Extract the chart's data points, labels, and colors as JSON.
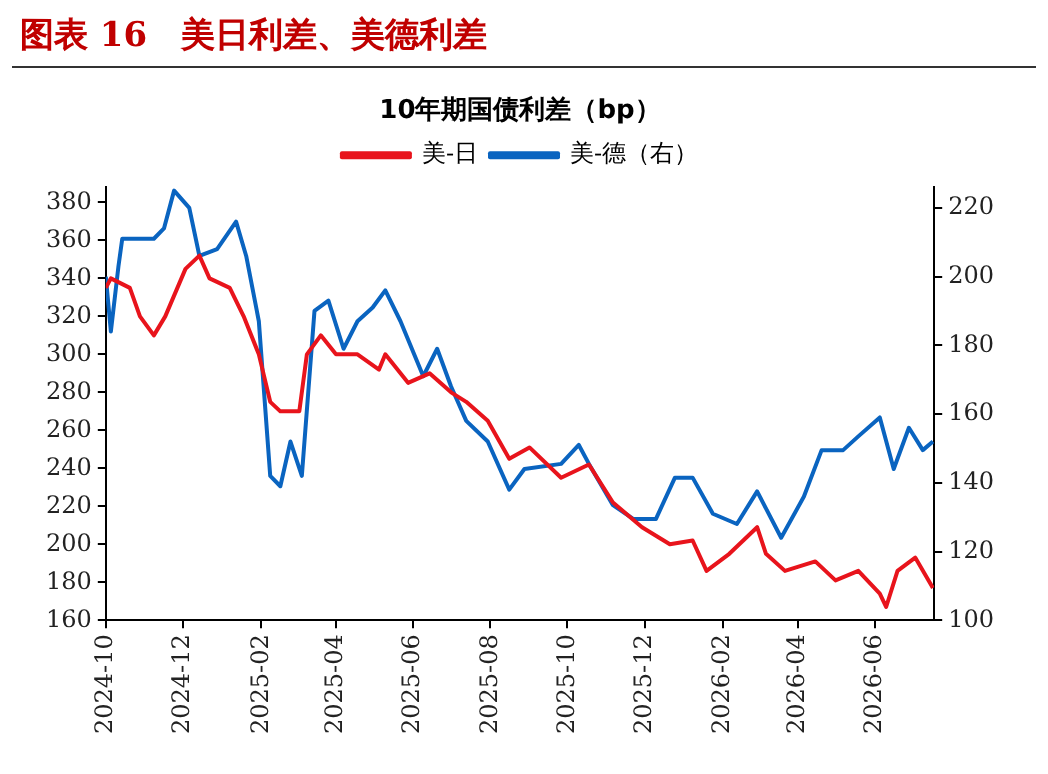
{
  "chart_data": {
    "type": "line",
    "title": "图表 16　美日利差、美德利差",
    "subtitle": "10年期国债利差（bp）",
    "xlim": [
      "2024-10-01",
      "2026-07-18"
    ],
    "xticks": [
      "2024-10",
      "2024-12",
      "2025-02",
      "2025-04",
      "2025-06",
      "2025-08",
      "2025-10",
      "2025-12",
      "2026-02",
      "2026-04",
      "2026-06"
    ],
    "ylim": [
      160,
      388
    ],
    "yticks": [
      160,
      180,
      200,
      220,
      240,
      260,
      280,
      300,
      320,
      340,
      360,
      380
    ],
    "y2lim": [
      100,
      226
    ],
    "y2ticks": [
      100,
      120,
      140,
      160,
      180,
      200,
      220
    ],
    "legend": "top",
    "grid": false,
    "marker": "none",
    "line_style": "solid",
    "series": [
      {
        "name": "美-日",
        "color": "#e8141c",
        "x": [
          "2024-10-01",
          "2024-10-05",
          "2024-10-20",
          "2024-10-28",
          "2024-11-08",
          "2024-11-17",
          "2024-12-03",
          "2024-12-14",
          "2024-12-22",
          "2025-01-07",
          "2025-01-18",
          "2025-01-30",
          "2025-02-08",
          "2025-02-16",
          "2025-03-03",
          "2025-03-09",
          "2025-03-20",
          "2025-04-01",
          "2025-04-18",
          "2025-05-05",
          "2025-05-10",
          "2025-05-28",
          "2025-06-14",
          "2025-07-01",
          "2025-07-13",
          "2025-07-30",
          "2025-08-16",
          "2025-09-01",
          "2025-09-26",
          "2025-10-18",
          "2025-11-06",
          "2025-11-29",
          "2025-12-21",
          "2026-01-08",
          "2026-01-19",
          "2026-02-06",
          "2026-02-28",
          "2026-03-07",
          "2026-03-22",
          "2026-04-15",
          "2026-05-01",
          "2026-05-19",
          "2026-06-05",
          "2026-06-10",
          "2026-06-19",
          "2026-07-03",
          "2026-07-17"
        ],
        "values": [
          335,
          340,
          335,
          320,
          310,
          320,
          345,
          352,
          340,
          335,
          320,
          300,
          275,
          270,
          270,
          300,
          310,
          300,
          300,
          292,
          300,
          285,
          290,
          280,
          275,
          265,
          245,
          251,
          235,
          242,
          222,
          209,
          200,
          202,
          186,
          195,
          209,
          195,
          186,
          191,
          181,
          186,
          174,
          167,
          186,
          193,
          177
        ]
      },
      {
        "name": "美-德（右）",
        "color": "#0a64c0",
        "axis": "y2",
        "x": [
          "2024-10-01",
          "2024-10-05",
          "2024-10-11",
          "2024-10-14",
          "2024-11-08",
          "2024-11-16",
          "2024-11-24",
          "2024-12-06",
          "2024-12-14",
          "2024-12-28",
          "2025-01-12",
          "2025-01-20",
          "2025-01-30",
          "2025-02-08",
          "2025-02-16",
          "2025-02-24",
          "2025-03-05",
          "2025-03-15",
          "2025-03-26",
          "2025-04-07",
          "2025-04-18",
          "2025-04-30",
          "2025-05-10",
          "2025-05-22",
          "2025-06-09",
          "2025-06-20",
          "2025-07-01",
          "2025-07-13",
          "2025-07-30",
          "2025-08-16",
          "2025-08-28",
          "2025-09-26",
          "2025-10-10",
          "2025-10-18",
          "2025-11-06",
          "2025-11-22",
          "2025-12-10",
          "2025-12-25",
          "2026-01-08",
          "2026-01-24",
          "2026-02-12",
          "2026-02-28",
          "2026-03-19",
          "2026-04-06",
          "2026-04-20",
          "2026-05-07",
          "2026-05-19",
          "2026-06-05",
          "2026-06-16",
          "2026-06-28",
          "2026-07-09",
          "2026-07-17"
        ],
        "values": [
          200,
          184,
          203,
          211,
          211,
          214,
          225,
          220,
          206,
          208,
          216,
          206,
          187,
          142,
          139,
          152,
          142,
          190,
          193,
          179,
          187,
          191,
          196,
          187,
          171,
          179,
          168,
          158,
          152,
          138,
          144,
          145.5,
          151,
          145.5,
          133.5,
          129.5,
          129.5,
          141.5,
          141.5,
          131,
          128,
          137.5,
          124,
          136,
          149.5,
          149.5,
          153.5,
          159,
          144,
          156,
          149.5,
          152
        ]
      }
    ]
  }
}
